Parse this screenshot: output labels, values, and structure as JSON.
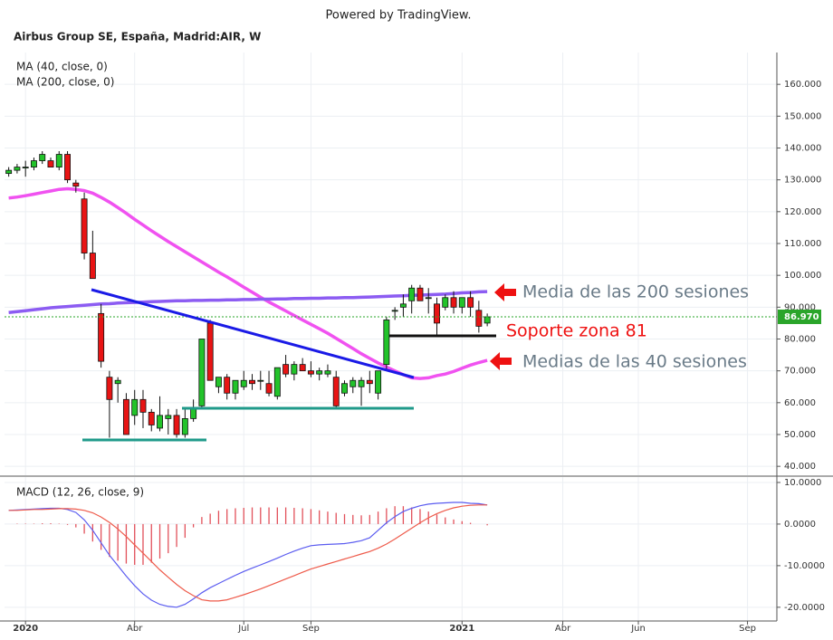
{
  "header": "Powered by TradingView.",
  "chart_data": [
    {
      "type": "candlestick",
      "title": "Airbus Group SE, España, Madrid:AIR, W",
      "categories": [
        null,
        null,
        "2020",
        null,
        null,
        null,
        null,
        null,
        null,
        null,
        null,
        null,
        null,
        null,
        null,
        "Abr",
        null,
        null,
        null,
        null,
        null,
        null,
        null,
        null,
        null,
        null,
        null,
        null,
        "Jul",
        null,
        null,
        null,
        null,
        null,
        null,
        null,
        "Sep",
        null,
        null,
        null,
        null,
        null,
        null,
        null,
        null,
        null,
        null,
        null,
        null,
        null,
        null,
        null,
        null,
        null,
        "2021",
        null,
        null,
        null,
        null,
        null,
        null,
        null,
        null,
        null,
        null,
        null,
        "Abr",
        null,
        null,
        null,
        null,
        null,
        null,
        null,
        null,
        "Jun",
        null,
        null,
        null,
        null,
        null,
        null,
        null,
        null,
        null,
        null,
        null,
        null,
        "Sep",
        null,
        null,
        null
      ],
      "open": [
        132,
        133,
        134,
        134,
        136,
        136,
        134,
        138,
        129,
        124,
        107,
        88,
        68,
        66,
        61,
        56,
        61,
        57,
        52,
        55,
        56,
        50,
        55,
        59,
        85,
        65,
        68,
        63,
        65,
        67,
        67,
        66,
        62,
        72,
        69,
        72,
        70,
        69,
        69,
        68,
        63,
        65,
        65,
        67,
        63,
        72,
        89,
        90,
        92,
        96,
        93,
        91,
        90,
        93,
        90,
        93,
        89,
        85,
        null,
        null,
        null,
        null,
        null,
        null,
        null,
        null,
        null,
        null,
        null,
        null,
        null,
        null,
        null,
        null,
        null,
        null,
        null,
        null,
        null,
        null,
        null,
        null,
        null,
        null,
        null,
        null,
        null,
        null,
        null,
        null,
        null,
        null
      ],
      "high": [
        134,
        135,
        136,
        137,
        139,
        137,
        139,
        139,
        130,
        126,
        114,
        91,
        70,
        68,
        63,
        64,
        64,
        58,
        62,
        58,
        58,
        58,
        61,
        80,
        86,
        68,
        69,
        67,
        70,
        69,
        70,
        70,
        71,
        75,
        73,
        74,
        73,
        71,
        72,
        70,
        67,
        68,
        68,
        70,
        69,
        87,
        90,
        94,
        97,
        97,
        96,
        93,
        94,
        95,
        93,
        95,
        92,
        88,
        null,
        null,
        null,
        null,
        null,
        null,
        null,
        null,
        null,
        null,
        null,
        null,
        null,
        null,
        null,
        null,
        null,
        null,
        null,
        null,
        null,
        null,
        null,
        null,
        null,
        null,
        null,
        null,
        null,
        null,
        null,
        null,
        null,
        null
      ],
      "low": [
        131,
        132,
        131,
        133,
        135,
        134,
        133,
        129,
        126,
        105,
        99,
        71,
        49,
        60,
        50,
        53,
        52,
        51,
        51,
        50,
        49,
        49,
        54,
        58,
        67,
        63,
        61,
        61,
        64,
        64,
        64,
        62,
        61,
        68,
        67,
        70,
        68,
        67,
        68,
        58,
        62,
        63,
        59,
        63,
        61,
        70,
        86,
        87,
        88,
        92,
        88,
        81,
        89,
        88,
        88,
        87,
        82,
        84,
        null,
        null,
        null,
        null,
        null,
        null,
        null,
        null,
        null,
        null,
        null,
        null,
        null,
        null,
        null,
        null,
        null,
        null,
        null,
        null,
        null,
        null,
        null,
        null,
        null,
        null,
        null,
        null,
        null,
        null,
        null,
        null,
        null,
        null
      ],
      "close": [
        133,
        134,
        134,
        136,
        138,
        134,
        138,
        130,
        128,
        107,
        99,
        73,
        61,
        67,
        50,
        61,
        57,
        53,
        56,
        56,
        50,
        55,
        58,
        80,
        67,
        68,
        63,
        67,
        67,
        66,
        67,
        63,
        71,
        69,
        72,
        70,
        69,
        70,
        70,
        59,
        66,
        67,
        67,
        66,
        70,
        86,
        89,
        91,
        96,
        92,
        93,
        85,
        93,
        90,
        93,
        90,
        84,
        86.97,
        null,
        null,
        null,
        null,
        null,
        null,
        null,
        null,
        null,
        null,
        null,
        null,
        null,
        null,
        null,
        null,
        null,
        null,
        null,
        null,
        null,
        null,
        null,
        null,
        null,
        null,
        null,
        null,
        null,
        null,
        null,
        null,
        null,
        null
      ],
      "up_color": "#22c32a",
      "down_color": "#e81414",
      "series": [
        {
          "name": "MA (40, close, 0)",
          "color": "#f052f0",
          "values": [
            124.3,
            124.6,
            125,
            125.5,
            126,
            126.5,
            127,
            127.2,
            127,
            126.6,
            125.8,
            124.5,
            123,
            121.3,
            119.5,
            117.6,
            115.8,
            114,
            112.3,
            110.6,
            109,
            107.4,
            105.8,
            104.2,
            102.6,
            101,
            99.5,
            97.9,
            96.3,
            94.7,
            93.1,
            91.6,
            90.2,
            88.8,
            87.4,
            86,
            84.6,
            83.2,
            81.8,
            80.2,
            78.6,
            77,
            75.4,
            73.9,
            72.5,
            71.2,
            70,
            68.8,
            67.8,
            67.6,
            67.8,
            68.5,
            69,
            69.8,
            70.8,
            71.8,
            72.6,
            73.3,
            null,
            null,
            null,
            null,
            null,
            null,
            null,
            null,
            null,
            null,
            null,
            null,
            null,
            null,
            null,
            null,
            null,
            null,
            null,
            null,
            null,
            null,
            null,
            null,
            null,
            null,
            null,
            null,
            null,
            null,
            null,
            null,
            null,
            null
          ]
        },
        {
          "name": "MA (200, close, 0)",
          "color": "#8c5cf2",
          "values": [
            88.3,
            88.6,
            88.9,
            89.2,
            89.5,
            89.8,
            90,
            90.2,
            90.4,
            90.6,
            90.8,
            91,
            91.1,
            91.3,
            91.4,
            91.5,
            91.6,
            91.7,
            91.8,
            91.9,
            92,
            92,
            92.1,
            92.1,
            92.2,
            92.2,
            92.3,
            92.3,
            92.4,
            92.4,
            92.5,
            92.5,
            92.6,
            92.6,
            92.7,
            92.7,
            92.8,
            92.8,
            92.9,
            92.9,
            93,
            93,
            93.1,
            93.2,
            93.3,
            93.4,
            93.5,
            93.6,
            93.7,
            93.8,
            93.9,
            94,
            94.1,
            94.3,
            94.5,
            94.6,
            94.8,
            94.9,
            null,
            null,
            null,
            null,
            null,
            null,
            null,
            null,
            null,
            null,
            null,
            null,
            null,
            null,
            null,
            null,
            null,
            null,
            null,
            null,
            null,
            null,
            null,
            null,
            null,
            null,
            null,
            null,
            null,
            null,
            null,
            null,
            null,
            null
          ]
        }
      ],
      "ylim": [
        37.2,
        170
      ],
      "yticks": [
        {
          "value": 40,
          "label": "40.000"
        },
        {
          "value": 50,
          "label": "50.000"
        },
        {
          "value": 60,
          "label": "60.000"
        },
        {
          "value": 70,
          "label": "70.000"
        },
        {
          "value": 80,
          "label": "80.000"
        },
        {
          "value": 90,
          "label": "90.000"
        },
        {
          "value": 100,
          "label": "100.000"
        },
        {
          "value": 110,
          "label": "110.000"
        },
        {
          "value": 120,
          "label": "120.000"
        },
        {
          "value": 130,
          "label": "130.000"
        },
        {
          "value": 140,
          "label": "140.000"
        },
        {
          "value": 150,
          "label": "150.000"
        },
        {
          "value": 160,
          "label": "160.000"
        }
      ],
      "last_price": {
        "value": 86.97,
        "label": "86.970"
      },
      "last_price_color": "#2aa52a",
      "grid": true,
      "annotations": [
        "Media de las 200 sesiones",
        "Soporte zona 81",
        "Medias de las 40 sesiones"
      ]
    },
    {
      "type": "macd",
      "title": "MACD (12, 26, close, 9)",
      "macd": {
        "color": "#5b5cf0",
        "values": [
          3.3,
          3.4,
          3.5,
          3.6,
          3.7,
          3.8,
          3.8,
          3.5,
          2.8,
          1,
          -1.5,
          -4.5,
          -7.5,
          -10,
          -12.5,
          -14.8,
          -16.8,
          -18.3,
          -19.3,
          -19.8,
          -20,
          -19.3,
          -18,
          -16.5,
          -15.3,
          -14.3,
          -13.3,
          -12.3,
          -11.4,
          -10.6,
          -9.8,
          -9,
          -8.2,
          -7.3,
          -6.5,
          -5.8,
          -5.2,
          -5,
          -4.9,
          -4.8,
          -4.7,
          -4.4,
          -4,
          -3.3,
          -1.5,
          0.3,
          1.8,
          3,
          3.8,
          4.4,
          4.8,
          5,
          5.1,
          5.2,
          5.2,
          5,
          4.9,
          4.6,
          null,
          null,
          null,
          null,
          null,
          null,
          null,
          null,
          null,
          null,
          null,
          null,
          null,
          null,
          null,
          null,
          null,
          null,
          null,
          null,
          null,
          null,
          null,
          null,
          null,
          null,
          null,
          null,
          null,
          null,
          null,
          null,
          null,
          null
        ]
      },
      "signal": {
        "color": "#ee5a4a",
        "values": [
          3.3,
          3.3,
          3.4,
          3.5,
          3.5,
          3.6,
          3.7,
          3.7,
          3.6,
          3.3,
          2.7,
          1.7,
          0.4,
          -1.2,
          -3,
          -5,
          -7,
          -9,
          -11,
          -12.8,
          -14.5,
          -16,
          -17.2,
          -18.2,
          -18.5,
          -18.5,
          -18.2,
          -17.6,
          -17,
          -16.3,
          -15.6,
          -14.8,
          -14,
          -13.2,
          -12.4,
          -11.6,
          -10.8,
          -10.2,
          -9.6,
          -9,
          -8.4,
          -7.8,
          -7.2,
          -6.6,
          -5.8,
          -4.8,
          -3.6,
          -2.3,
          -1,
          0.3,
          1.5,
          2.5,
          3.3,
          3.9,
          4.3,
          4.5,
          4.6,
          4.6,
          null,
          null,
          null,
          null,
          null,
          null,
          null,
          null,
          null,
          null,
          null,
          null,
          null,
          null,
          null,
          null,
          null,
          null,
          null,
          null,
          null,
          null,
          null,
          null,
          null,
          null,
          null,
          null,
          null,
          null,
          null,
          null,
          null,
          null
        ]
      },
      "histogram": {
        "color": "#e2505a",
        "values": [
          0,
          0.1,
          0.1,
          0.1,
          0.2,
          0.2,
          0.1,
          -0.2,
          -0.8,
          -2.3,
          -4.2,
          -6.2,
          -7.9,
          -8.8,
          -9.5,
          -9.8,
          -9.8,
          -9.3,
          -8.3,
          -7,
          -5.5,
          -3.3,
          -0.8,
          1.7,
          2.5,
          3.2,
          3.6,
          3.8,
          3.9,
          4,
          4,
          4,
          4,
          4,
          3.9,
          3.8,
          3.6,
          3.3,
          3,
          2.7,
          2.4,
          2.2,
          2.1,
          2.2,
          3,
          3.8,
          4.3,
          4.3,
          4,
          3.6,
          3,
          2.3,
          1.6,
          1.1,
          0.7,
          0.3,
          0,
          -0.3,
          null,
          null,
          null,
          null,
          null,
          null,
          null,
          null,
          null,
          null,
          null,
          null,
          null,
          null,
          null,
          null,
          null,
          null,
          null,
          null,
          null,
          null,
          null,
          null,
          null,
          null,
          null,
          null,
          null,
          null,
          null,
          null,
          null,
          null
        ]
      },
      "ylim": [
        -23.3,
        11.3
      ],
      "yticks": [
        {
          "value": 10,
          "label": "10.0000"
        },
        {
          "value": 0,
          "label": "0.0000"
        },
        {
          "value": -10,
          "label": "-10.0000"
        },
        {
          "value": -20,
          "label": "-20.0000"
        }
      ],
      "grid": true
    }
  ]
}
